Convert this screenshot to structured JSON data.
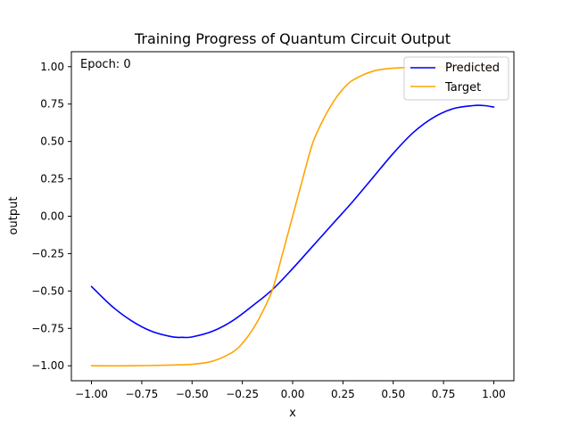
{
  "chart_data": {
    "type": "line",
    "title": "Training Progress of Quantum Circuit Output",
    "xlabel": "x",
    "ylabel": "output",
    "xlim": [
      -1.1,
      1.1
    ],
    "ylim": [
      -1.1,
      1.1
    ],
    "xticks": [
      -1.0,
      -0.75,
      -0.5,
      -0.25,
      0.0,
      0.25,
      0.5,
      0.75,
      1.0
    ],
    "xtick_labels": [
      "−1.00",
      "−0.75",
      "−0.50",
      "−0.25",
      "0.00",
      "0.25",
      "0.50",
      "0.75",
      "1.00"
    ],
    "yticks": [
      -1.0,
      -0.75,
      -0.5,
      -0.25,
      0.0,
      0.25,
      0.5,
      0.75,
      1.0
    ],
    "ytick_labels": [
      "−1.00",
      "−0.75",
      "−0.50",
      "−0.25",
      "0.00",
      "0.25",
      "0.50",
      "0.75",
      "1.00"
    ],
    "grid": false,
    "legend_position": "top-right",
    "annotation": "Epoch: 0",
    "series": [
      {
        "name": "Predicted",
        "color": "#0000ff",
        "x": [
          -1.0,
          -0.9,
          -0.8,
          -0.7,
          -0.6,
          -0.55,
          -0.5,
          -0.4,
          -0.3,
          -0.2,
          -0.1,
          0.0,
          0.1,
          0.2,
          0.3,
          0.4,
          0.5,
          0.6,
          0.7,
          0.8,
          0.9,
          0.95,
          1.0
        ],
        "y": [
          -0.47,
          -0.6,
          -0.7,
          -0.77,
          -0.806,
          -0.81,
          -0.807,
          -0.77,
          -0.7,
          -0.6,
          -0.49,
          -0.35,
          -0.2,
          -0.05,
          0.1,
          0.26,
          0.42,
          0.56,
          0.66,
          0.72,
          0.74,
          0.74,
          0.73
        ]
      },
      {
        "name": "Target",
        "color": "#ffa500",
        "x": [
          -1.0,
          -0.8,
          -0.6,
          -0.5,
          -0.4,
          -0.3,
          -0.25,
          -0.2,
          -0.15,
          -0.1,
          -0.05,
          0.0,
          0.05,
          0.1,
          0.15,
          0.2,
          0.25,
          0.3,
          0.4,
          0.5,
          0.6,
          0.8,
          1.0
        ],
        "y": [
          -1.0,
          -1.0,
          -0.995,
          -0.99,
          -0.97,
          -0.91,
          -0.85,
          -0.76,
          -0.64,
          -0.49,
          -0.25,
          0.0,
          0.25,
          0.49,
          0.64,
          0.76,
          0.85,
          0.91,
          0.97,
          0.99,
          0.995,
          1.0,
          1.0
        ]
      }
    ]
  }
}
